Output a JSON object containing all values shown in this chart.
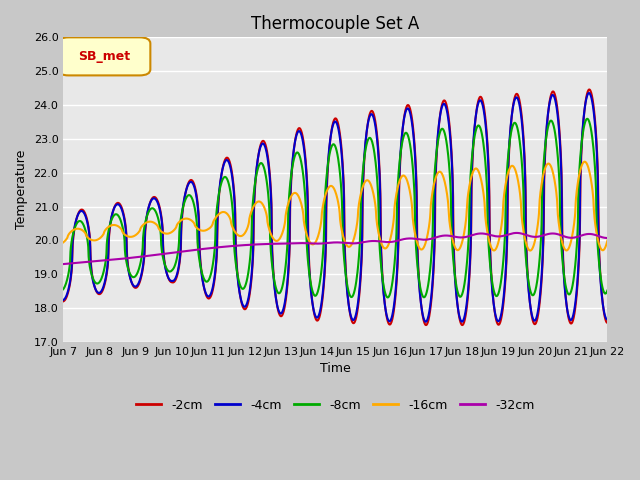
{
  "title": "Thermocouple Set A",
  "xlabel": "Time",
  "ylabel": "Temperature",
  "ylim": [
    17.0,
    26.0
  ],
  "yticks": [
    17.0,
    18.0,
    19.0,
    20.0,
    21.0,
    22.0,
    23.0,
    24.0,
    25.0,
    26.0
  ],
  "xtick_labels": [
    "Jun 7",
    "Jun 8",
    "Jun 9",
    "Jun 10",
    "Jun 11",
    "Jun 12",
    "Jun 13",
    "Jun 14",
    "Jun 15",
    "Jun 16",
    "Jun 17",
    "Jun 18",
    "Jun 19",
    "Jun 20",
    "Jun 21",
    "Jun 22"
  ],
  "line_colors": [
    "#cc0000",
    "#0000cc",
    "#00aa00",
    "#ffaa00",
    "#aa00aa"
  ],
  "line_labels": [
    "-2cm",
    "-4cm",
    "-8cm",
    "-16cm",
    "-32cm"
  ],
  "line_widths": [
    1.5,
    1.5,
    1.5,
    1.5,
    1.5
  ],
  "legend_label": "SB_met",
  "legend_bg": "#ffffcc",
  "legend_edge": "#cc8800",
  "legend_text": "#cc0000",
  "fig_facecolor": "#c8c8c8",
  "plot_bg": "#e8e8e8",
  "grid_color": "#ffffff",
  "title_fontsize": 12,
  "axis_fontsize": 9,
  "tick_fontsize": 8,
  "figsize": [
    6.4,
    4.8
  ],
  "dpi": 100
}
